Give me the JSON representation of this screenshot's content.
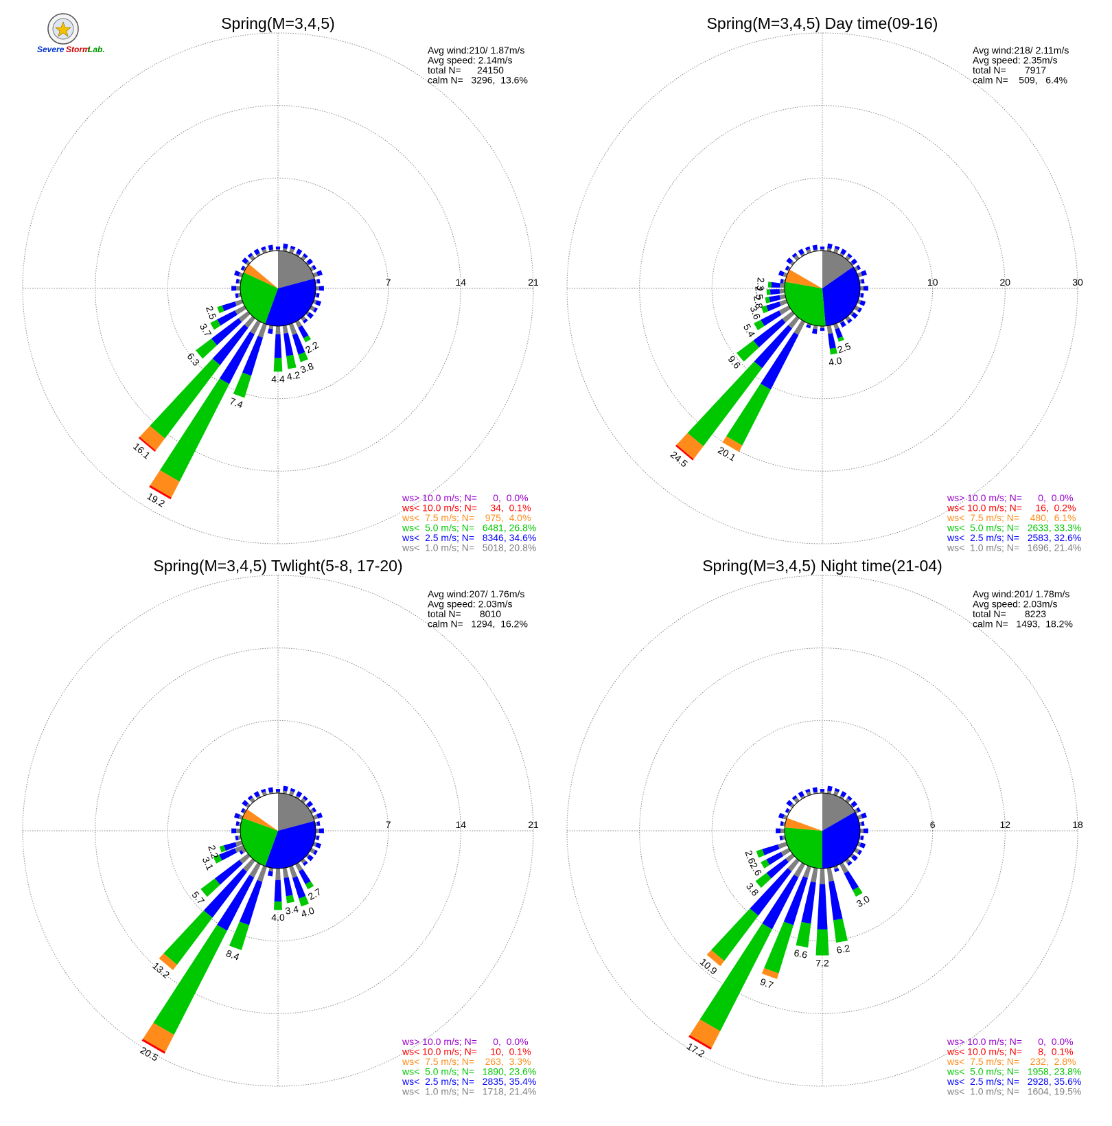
{
  "logo": {
    "text_a": "Severe",
    "text_b": "Storm",
    "text_c": "Lab."
  },
  "colors": {
    "calm_gray": "#808080",
    "lt1": "#808080",
    "lt25": "#0000ff",
    "lt5": "#00c800",
    "lt75": "#ff8c1a",
    "lt10": "#ff0000",
    "gt10": "#9900cc",
    "grid": "#8a8a8a"
  },
  "chart_data": [
    {
      "type": "polar-bar",
      "title": "Spring(M=3,4,5)",
      "stats": [
        "Avg wind:210/ 1.87m/s",
        "Avg speed: 2.14m/s",
        "total N=      24150",
        "calm N=   3296,  13.6%"
      ],
      "rings": [
        7,
        14,
        21
      ],
      "ring_labels": [
        "7",
        "14",
        "21"
      ],
      "calm_pie": [
        {
          "cls": "lt1",
          "deg": 75
        },
        {
          "cls": "lt25",
          "deg": 125
        },
        {
          "cls": "lt5",
          "deg": 95
        },
        {
          "cls": "lt75",
          "deg": 15
        },
        {
          "cls": "white",
          "deg": 50
        }
      ],
      "bars": [
        {
          "dir": 150,
          "total": 2.2,
          "label": "2.2"
        },
        {
          "dir": 160,
          "total": 3.8,
          "label": "3.8"
        },
        {
          "dir": 170,
          "total": 4.2,
          "label": "4.2"
        },
        {
          "dir": 180,
          "total": 4.4,
          "label": "4.4"
        },
        {
          "dir": 200,
          "total": 7.4,
          "label": "7.4"
        },
        {
          "dir": 210,
          "total": 19.2,
          "label": "19.2"
        },
        {
          "dir": 220,
          "total": 16.1,
          "label": "16.1"
        },
        {
          "dir": 230,
          "total": 6.3,
          "label": "6.3"
        },
        {
          "dir": 240,
          "total": 3.7,
          "label": "3.7"
        },
        {
          "dir": 250,
          "total": 2.5,
          "label": "2.5"
        }
      ],
      "legend": [
        {
          "cls": "gt10",
          "text": "ws> 10.0 m/s; N=      0,  0.0%"
        },
        {
          "cls": "lt10",
          "text": "ws< 10.0 m/s; N=     34,  0.1%"
        },
        {
          "cls": "lt75",
          "text": "ws<  7.5 m/s; N=    975,  4.0%"
        },
        {
          "cls": "lt5",
          "text": "ws<  5.0 m/s; N=   6481, 26.8%"
        },
        {
          "cls": "lt25",
          "text": "ws<  2.5 m/s; N=   8346, 34.6%"
        },
        {
          "cls": "lt1",
          "text": "ws<  1.0 m/s; N=   5018, 20.8%"
        }
      ]
    },
    {
      "type": "polar-bar",
      "title": "Spring(M=3,4,5) Day time(09-16)",
      "stats": [
        "Avg wind:218/ 2.11m/s",
        "Avg speed: 2.35m/s",
        "total N=       7917",
        "calm N=    509,   6.4%"
      ],
      "rings": [
        10,
        20,
        30
      ],
      "ring_labels": [
        "10",
        "20",
        "30"
      ],
      "calm_pie": [
        {
          "cls": "lt1",
          "deg": 55
        },
        {
          "cls": "lt25",
          "deg": 120
        },
        {
          "cls": "lt5",
          "deg": 105
        },
        {
          "cls": "lt75",
          "deg": 20
        },
        {
          "cls": "white",
          "deg": 60
        }
      ],
      "bars": [
        {
          "dir": 160,
          "total": 2.5,
          "label": "2.5"
        },
        {
          "dir": 170,
          "total": 4.0,
          "label": "4.0"
        },
        {
          "dir": 210,
          "total": 20.1,
          "label": "20.1"
        },
        {
          "dir": 220,
          "total": 24.5,
          "label": "24.5"
        },
        {
          "dir": 230,
          "total": 9.6,
          "label": "9.6"
        },
        {
          "dir": 240,
          "total": 5.4,
          "label": "5.4"
        },
        {
          "dir": 250,
          "total": 3.6,
          "label": "3.6"
        },
        {
          "dir": 258,
          "total": 2.8,
          "label": "2.8"
        },
        {
          "dir": 266,
          "total": 2.5,
          "label": "2.5"
        },
        {
          "dir": 274,
          "total": 2.3,
          "label": "2.3"
        }
      ],
      "legend": [
        {
          "cls": "gt10",
          "text": "ws> 10.0 m/s; N=      0,  0.0%"
        },
        {
          "cls": "lt10",
          "text": "ws< 10.0 m/s; N=     16,  0.2%"
        },
        {
          "cls": "lt75",
          "text": "ws<  7.5 m/s; N=    480,  6.1%"
        },
        {
          "cls": "lt5",
          "text": "ws<  5.0 m/s; N=   2633, 33.3%"
        },
        {
          "cls": "lt25",
          "text": "ws<  2.5 m/s; N=   2583, 32.6%"
        },
        {
          "cls": "lt1",
          "text": "ws<  1.0 m/s; N=   1696, 21.4%"
        }
      ]
    },
    {
      "type": "polar-bar",
      "title": "Spring(M=3,4,5) Twlight(5-8, 17-20)",
      "stats": [
        "Avg wind:207/ 1.76m/s",
        "Avg speed: 2.03m/s",
        "total N=       8010",
        "calm N=   1294,  16.2%"
      ],
      "rings": [
        7,
        14,
        21
      ],
      "ring_labels": [
        "7",
        "14",
        "21"
      ],
      "calm_pie": [
        {
          "cls": "lt1",
          "deg": 75
        },
        {
          "cls": "lt25",
          "deg": 125
        },
        {
          "cls": "lt5",
          "deg": 90
        },
        {
          "cls": "lt75",
          "deg": 15
        },
        {
          "cls": "white",
          "deg": 55
        }
      ],
      "bars": [
        {
          "dir": 150,
          "total": 2.7,
          "label": "2.7"
        },
        {
          "dir": 160,
          "total": 4.0,
          "label": "4.0"
        },
        {
          "dir": 170,
          "total": 3.4,
          "label": "3.4"
        },
        {
          "dir": 180,
          "total": 4.0,
          "label": "4.0"
        },
        {
          "dir": 200,
          "total": 8.4,
          "label": "8.4"
        },
        {
          "dir": 210,
          "total": 20.5,
          "label": "20.5"
        },
        {
          "dir": 220,
          "total": 13.2,
          "label": "13.2"
        },
        {
          "dir": 230,
          "total": 5.7,
          "label": "5.7"
        },
        {
          "dir": 245,
          "total": 3.1,
          "label": "3.1"
        },
        {
          "dir": 252,
          "total": 2.2,
          "label": "2.2"
        }
      ],
      "legend": [
        {
          "cls": "gt10",
          "text": "ws> 10.0 m/s; N=      0,  0.0%"
        },
        {
          "cls": "lt10",
          "text": "ws< 10.0 m/s; N=     10,  0.1%"
        },
        {
          "cls": "lt75",
          "text": "ws<  7.5 m/s; N=    263,  3.3%"
        },
        {
          "cls": "lt5",
          "text": "ws<  5.0 m/s; N=   1890, 23.6%"
        },
        {
          "cls": "lt25",
          "text": "ws<  2.5 m/s; N=   2835, 35.4%"
        },
        {
          "cls": "lt1",
          "text": "ws<  1.0 m/s; N=   1718, 21.4%"
        }
      ]
    },
    {
      "type": "polar-bar",
      "title": "Spring(M=3,4,5) Night time(21-04)",
      "stats": [
        "Avg wind:201/ 1.78m/s",
        "Avg speed: 2.03m/s",
        "total N=       8223",
        "calm N=   1493,  18.2%"
      ],
      "rings": [
        6,
        12,
        18
      ],
      "ring_labels": [
        "6",
        "12",
        "18"
      ],
      "calm_pie": [
        {
          "cls": "lt1",
          "deg": 60
        },
        {
          "cls": "lt25",
          "deg": 120
        },
        {
          "cls": "lt5",
          "deg": 95
        },
        {
          "cls": "lt75",
          "deg": 15
        },
        {
          "cls": "white",
          "deg": 70
        }
      ],
      "bars": [
        {
          "dir": 150,
          "total": 3.0,
          "label": "3.0"
        },
        {
          "dir": 170,
          "total": 6.2,
          "label": "6.2"
        },
        {
          "dir": 180,
          "total": 7.2,
          "label": "7.2"
        },
        {
          "dir": 190,
          "total": 6.6,
          "label": "6.6"
        },
        {
          "dir": 200,
          "total": 9.7,
          "label": "9.7"
        },
        {
          "dir": 210,
          "total": 17.2,
          "label": "17.2"
        },
        {
          "dir": 220,
          "total": 10.9,
          "label": "10.9"
        },
        {
          "dir": 230,
          "total": 3.8,
          "label": "3.8"
        },
        {
          "dir": 240,
          "total": 2.6,
          "label": "2.6"
        },
        {
          "dir": 250,
          "total": 2.6,
          "label": "2.6"
        }
      ],
      "legend": [
        {
          "cls": "gt10",
          "text": "ws> 10.0 m/s; N=      0,  0.0%"
        },
        {
          "cls": "lt10",
          "text": "ws< 10.0 m/s; N=      8,  0.1%"
        },
        {
          "cls": "lt75",
          "text": "ws<  7.5 m/s; N=    232,  2.8%"
        },
        {
          "cls": "lt5",
          "text": "ws<  5.0 m/s; N=   1958, 23.8%"
        },
        {
          "cls": "lt25",
          "text": "ws<  2.5 m/s; N=   2928, 35.6%"
        },
        {
          "cls": "lt1",
          "text": "ws<  1.0 m/s; N=   1604, 19.5%"
        }
      ]
    }
  ]
}
